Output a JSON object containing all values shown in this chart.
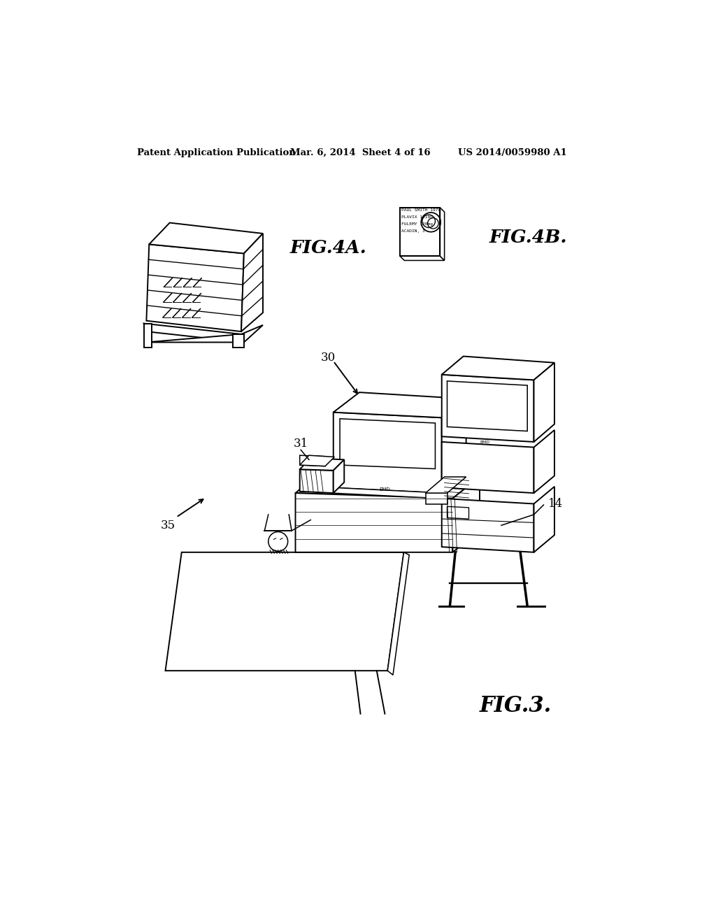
{
  "bg_color": "#ffffff",
  "header_left": "Patent Application Publication",
  "header_mid": "Mar. 6, 2014  Sheet 4 of 16",
  "header_right": "US 2014/0059980 A1",
  "fig_labels": {
    "fig4a": "FIG.4A.",
    "fig4b": "FIG.4B.",
    "fig3": "FIG.3."
  },
  "ref_numbers": {
    "r30": "30",
    "r31": "31",
    "r35": "35",
    "r14": "14"
  },
  "lw": 1.4
}
